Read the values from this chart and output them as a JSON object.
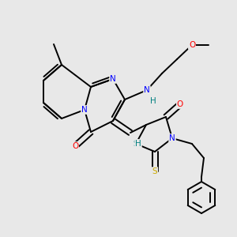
{
  "bg_color": "#e8e8e8",
  "bond_color": "#000000",
  "atom_colors": {
    "N": "#0000ff",
    "O": "#ff0000",
    "S_thio": "#ccaa00",
    "S_ring": "#008080",
    "H": "#008080"
  },
  "lw": 1.4,
  "dbo": 0.012
}
